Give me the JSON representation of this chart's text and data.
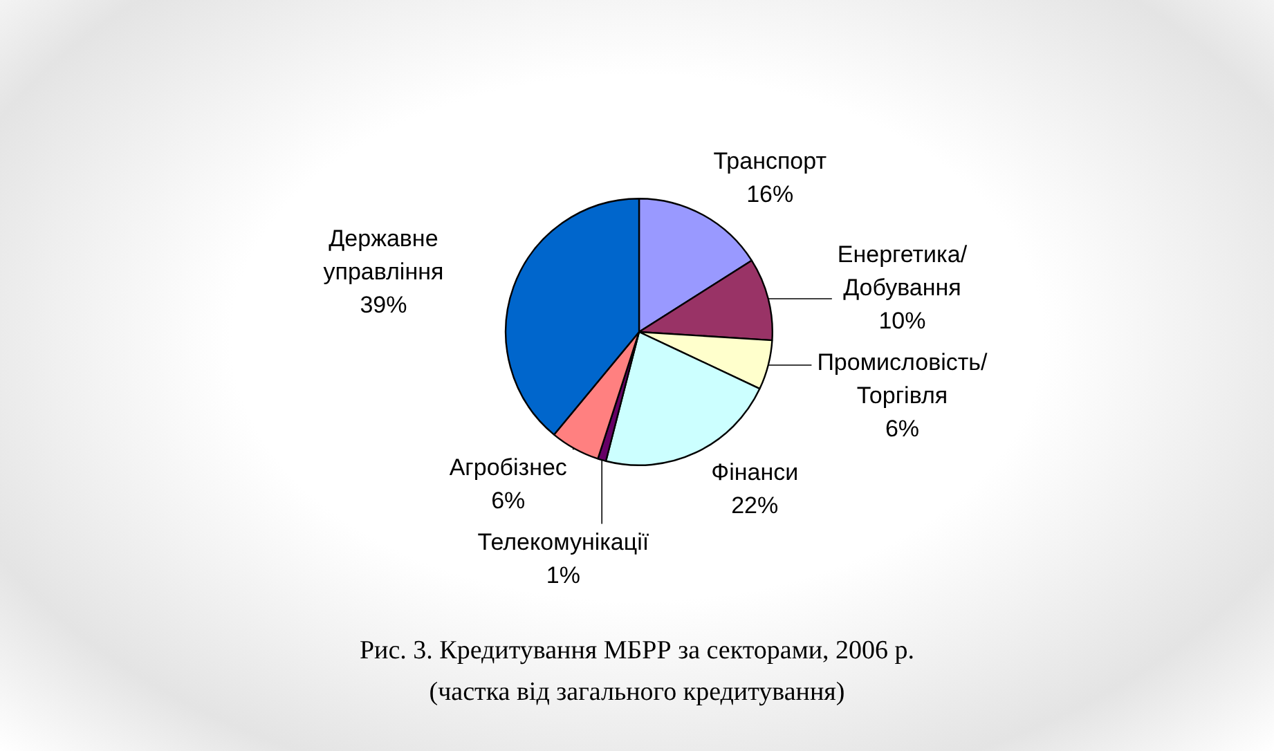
{
  "chart_data": {
    "type": "pie",
    "title": "Рис. 3.  Кредитування МБРР за секторами, 2006 р.",
    "subtitle": "(частка від загального кредитування)",
    "categories": [
      "Транспорт",
      "Енергетика/Добування",
      "Промисловість/Торгівля",
      "Фінанси",
      "Телекомунікації",
      "Агробізнес",
      "Державне управління"
    ],
    "values": [
      16,
      10,
      6,
      22,
      1,
      6,
      39
    ],
    "colors": [
      "#9999ff",
      "#993366",
      "#ffffcc",
      "#ccffff",
      "#660066",
      "#ff8080",
      "#0066cc"
    ],
    "value_labels": [
      "16%",
      "10%",
      "6%",
      "22%",
      "1%",
      "6%",
      "39%"
    ],
    "legend": false
  }
}
